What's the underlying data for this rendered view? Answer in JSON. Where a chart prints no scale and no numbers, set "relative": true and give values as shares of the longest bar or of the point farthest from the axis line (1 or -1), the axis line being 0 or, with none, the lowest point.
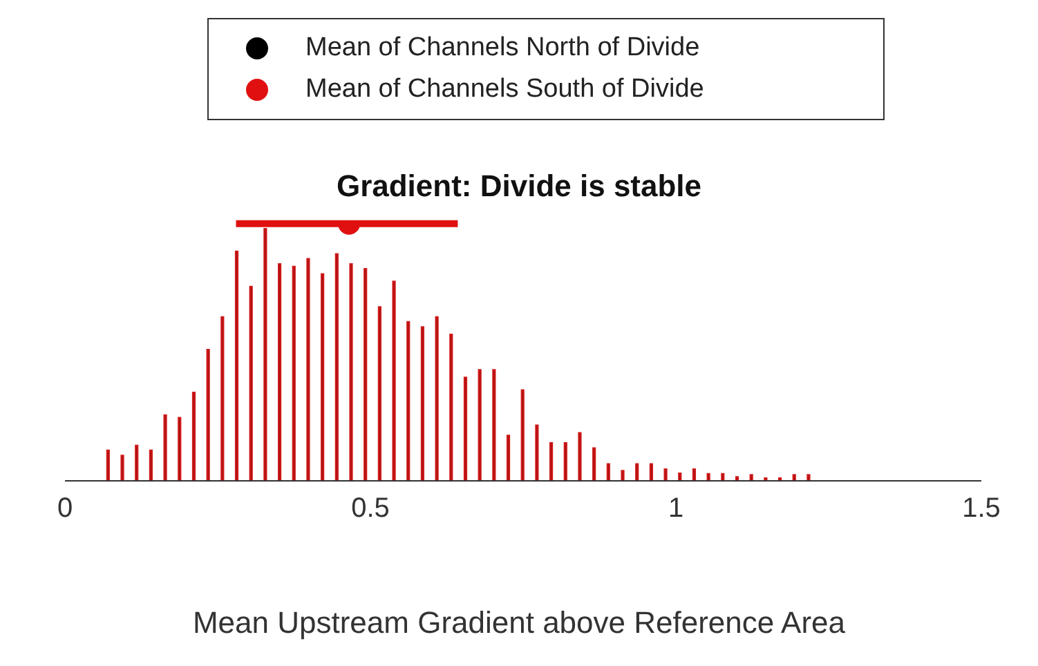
{
  "chart_data": {
    "type": "bar",
    "title": "Gradient: Divide is stable",
    "xlabel": "Mean Upstream Gradient above Reference Area",
    "relative": true,
    "tick_labels": "x",
    "legend": "top",
    "grid": false,
    "marker": "circle",
    "xlim": [
      0,
      1.5
    ],
    "xticks": [
      0,
      0.5,
      1,
      1.5
    ],
    "series": [
      {
        "color": "#4a0606",
        "x": [
          0.0707,
          0.0941,
          0.1175,
          0.1409,
          0.1643,
          0.1877,
          0.2111,
          0.2345,
          0.2579,
          0.2813,
          0.3047,
          0.3281,
          0.3515,
          0.3749,
          0.3983,
          0.4217,
          0.4451,
          0.4685,
          0.4919,
          0.5153,
          0.5387,
          0.5621,
          0.5855,
          0.6089,
          0.6323,
          0.6557,
          0.6791,
          0.7025,
          0.7259,
          0.7493,
          0.7727,
          0.7961,
          0.8195,
          0.8429,
          0.8663,
          0.8897,
          0.9131,
          0.9365,
          0.9599,
          0.9833,
          1.0067,
          1.0301,
          1.0535,
          1.0769,
          1.1003,
          1.1237,
          1.1471,
          1.1705,
          1.1939,
          1.2173
        ],
        "values": [
          0.118,
          0.098,
          0.137,
          0.118,
          0.255,
          0.245,
          0.343,
          0.51,
          0.637,
          0.892,
          0.755,
          0.98,
          0.843,
          0.833,
          0.863,
          0.804,
          0.882,
          0.843,
          0.824,
          0.676,
          0.775,
          0.618,
          0.598,
          0.637,
          0.569,
          0.402,
          0.431,
          0.431,
          0.176,
          0.353,
          0.216,
          0.147,
          0.147,
          0.186,
          0.127,
          0.065,
          0.039,
          0.065,
          0.065,
          0.045,
          0.029,
          0.045,
          0.027,
          0.027,
          0.015,
          0.023,
          0.01,
          0.01,
          0.023,
          0.023
        ]
      },
      {
        "type": "scatter",
        "name": "Mean of Channels North of Divide",
        "color": "#000000",
        "values": [
          null
        ]
      },
      {
        "type": "scatter",
        "name": "Mean of Channels South of Divide",
        "color": "#e01010",
        "x": [
          0.465
        ],
        "values": [
          1
        ],
        "xerrors": [
          [
            0.28,
            0.643
          ]
        ]
      }
    ]
  }
}
